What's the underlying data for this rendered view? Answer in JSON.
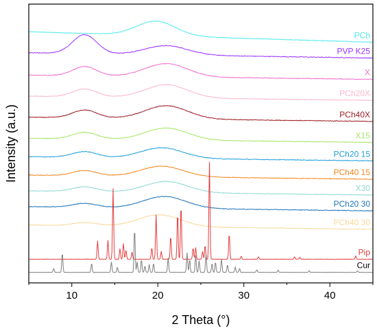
{
  "chart_data": {
    "type": "line",
    "xlabel": "2 Theta (°)",
    "ylabel": "Intensity (a.u.)",
    "xlim": [
      5,
      45
    ],
    "x_ticks": [
      10,
      20,
      30,
      40
    ],
    "y_ticks_shown": false,
    "grid": false,
    "legend_placement": "right, beside each trace",
    "series": [
      {
        "name": "PCh",
        "color": "#4de8ec",
        "offset": 9.1,
        "hump": [
          {
            "center": 19.8,
            "width": 3.2,
            "height": 0.55
          }
        ],
        "base": 0.05,
        "slope": -0.01,
        "noise": 0.01,
        "peaks": []
      },
      {
        "name": "PVP K25",
        "color": "#9b30ff",
        "offset": 8.2,
        "hump": [
          {
            "center": 11.5,
            "width": 2.0,
            "height": 0.72
          },
          {
            "center": 21.0,
            "width": 3.5,
            "height": 0.35
          }
        ],
        "base": 0.15,
        "slope": -0.005,
        "noise": 0.012,
        "peaks": []
      },
      {
        "name": "X",
        "color": "#f06ccb",
        "offset": 7.4,
        "hump": [
          {
            "center": 11.5,
            "width": 2.0,
            "height": 0.35
          },
          {
            "center": 21.0,
            "width": 3.5,
            "height": 0.5
          }
        ],
        "base": 0.1,
        "slope": -0.004,
        "noise": 0.012,
        "peaks": []
      },
      {
        "name": "PCh20X",
        "color": "#f9b6cf",
        "offset": 6.6,
        "hump": [
          {
            "center": 11.5,
            "width": 2.0,
            "height": 0.3
          },
          {
            "center": 21.0,
            "width": 3.5,
            "height": 0.5
          }
        ],
        "base": 0.1,
        "slope": -0.004,
        "noise": 0.012,
        "peaks": []
      },
      {
        "name": "PCh40X",
        "color": "#9c1c24",
        "offset": 5.8,
        "hump": [
          {
            "center": 11.5,
            "width": 2.0,
            "height": 0.3
          },
          {
            "center": 21.0,
            "width": 3.5,
            "height": 0.5
          }
        ],
        "base": 0.1,
        "slope": -0.004,
        "noise": 0.012,
        "peaks": []
      },
      {
        "name": "X15",
        "color": "#a6e565",
        "offset": 5.0,
        "hump": [
          {
            "center": 11.5,
            "width": 2.0,
            "height": 0.25
          },
          {
            "center": 21.0,
            "width": 3.5,
            "height": 0.45
          }
        ],
        "base": 0.1,
        "slope": -0.004,
        "noise": 0.012,
        "peaks": []
      },
      {
        "name": "PCh20 15",
        "color": "#1f9fd9",
        "offset": 4.3,
        "hump": [
          {
            "center": 11.5,
            "width": 2.0,
            "height": 0.22
          },
          {
            "center": 20.5,
            "width": 3.5,
            "height": 0.4
          }
        ],
        "base": 0.1,
        "slope": -0.004,
        "noise": 0.012,
        "peaks": []
      },
      {
        "name": "PCh40 15",
        "color": "#f5871f",
        "offset": 3.6,
        "hump": [
          {
            "center": 11.5,
            "width": 2.0,
            "height": 0.2
          },
          {
            "center": 20.5,
            "width": 3.5,
            "height": 0.4
          }
        ],
        "base": 0.1,
        "slope": -0.004,
        "noise": 0.012,
        "peaks": []
      },
      {
        "name": "X30",
        "color": "#8fd9d2",
        "offset": 3.0,
        "hump": [
          {
            "center": 11.5,
            "width": 2.0,
            "height": 0.18
          },
          {
            "center": 21.0,
            "width": 3.5,
            "height": 0.42
          }
        ],
        "base": 0.1,
        "slope": -0.004,
        "noise": 0.012,
        "peaks": []
      },
      {
        "name": "PCh20 30",
        "color": "#1f74b8",
        "offset": 2.4,
        "hump": [
          {
            "center": 11.5,
            "width": 2.0,
            "height": 0.15
          },
          {
            "center": 20.8,
            "width": 3.5,
            "height": 0.45
          }
        ],
        "base": 0.1,
        "slope": -0.004,
        "noise": 0.012,
        "peaks": []
      },
      {
        "name": "PCh40 30",
        "color": "#f9d89e",
        "offset": 1.7,
        "hump": [
          {
            "center": 11.5,
            "width": 2.0,
            "height": 0.12
          },
          {
            "center": 20.2,
            "width": 3.5,
            "height": 0.45
          }
        ],
        "base": 0.1,
        "slope": -0.004,
        "noise": 0.012,
        "peaks": []
      },
      {
        "name": "Pip",
        "color": "#e23c3c",
        "offset": 0.5,
        "hump": [],
        "base": 0.0,
        "slope": 0.0,
        "noise": 0.008,
        "peaks": [
          [
            13.0,
            0.7
          ],
          [
            14.2,
            0.72
          ],
          [
            14.8,
            2.7
          ],
          [
            15.6,
            0.4
          ],
          [
            16.0,
            0.6
          ],
          [
            16.3,
            0.35
          ],
          [
            17.0,
            0.28
          ],
          [
            19.3,
            0.45
          ],
          [
            19.8,
            1.7
          ],
          [
            20.4,
            0.3
          ],
          [
            21.5,
            0.9
          ],
          [
            22.3,
            1.8
          ],
          [
            22.7,
            2.1
          ],
          [
            24.1,
            0.45
          ],
          [
            24.4,
            0.45
          ],
          [
            25.2,
            0.3
          ],
          [
            25.5,
            0.55
          ],
          [
            26.0,
            3.7
          ],
          [
            28.3,
            1.0
          ],
          [
            29.7,
            0.12
          ],
          [
            31.7,
            0.1
          ],
          [
            35.9,
            0.1
          ],
          [
            36.5,
            0.08
          ],
          [
            43.0,
            0.12
          ]
        ]
      },
      {
        "name": "Cur",
        "color": "#7d7d7d",
        "offset": 0.0,
        "hump": [],
        "base": 0.0,
        "slope": 0.0,
        "noise": 0.006,
        "peaks": [
          [
            7.9,
            0.15
          ],
          [
            8.9,
            0.75
          ],
          [
            12.3,
            0.35
          ],
          [
            14.6,
            0.4
          ],
          [
            15.3,
            0.2
          ],
          [
            17.3,
            1.7
          ],
          [
            17.6,
            0.4
          ],
          [
            18.1,
            0.5
          ],
          [
            18.5,
            0.25
          ],
          [
            19.0,
            0.3
          ],
          [
            19.5,
            0.35
          ],
          [
            21.2,
            0.55
          ],
          [
            23.4,
            0.75
          ],
          [
            23.7,
            0.5
          ],
          [
            24.4,
            0.65
          ],
          [
            24.8,
            0.45
          ],
          [
            25.6,
            0.7
          ],
          [
            26.3,
            0.35
          ],
          [
            26.7,
            0.4
          ],
          [
            27.4,
            0.5
          ],
          [
            28.1,
            0.3
          ],
          [
            29.0,
            0.2
          ],
          [
            29.5,
            0.15
          ],
          [
            31.5,
            0.1
          ],
          [
            34.0,
            0.08
          ],
          [
            37.6,
            0.06
          ],
          [
            43.2,
            0.06
          ]
        ]
      }
    ]
  }
}
